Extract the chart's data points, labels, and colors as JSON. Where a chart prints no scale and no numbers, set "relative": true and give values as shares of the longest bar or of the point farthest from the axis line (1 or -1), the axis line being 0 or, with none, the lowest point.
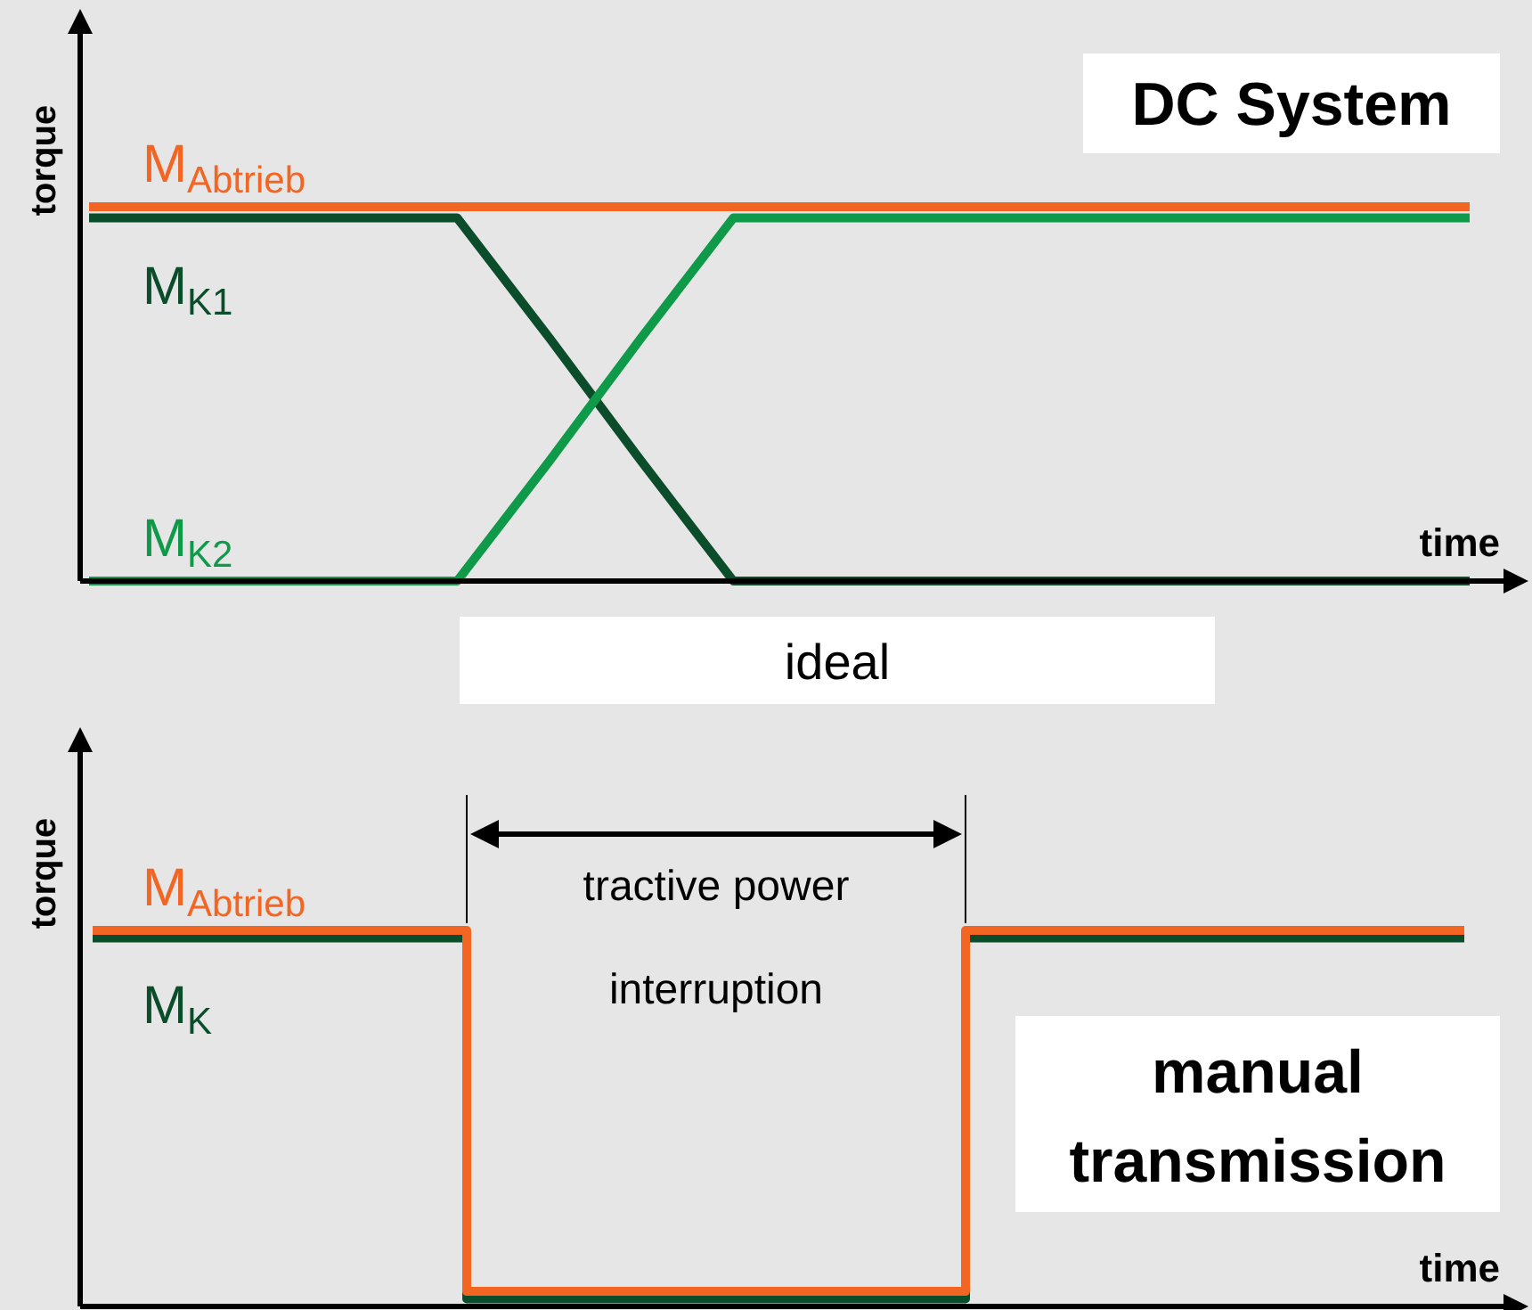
{
  "chart_data": [
    {
      "type": "line",
      "title": "DC System",
      "xlabel": "time",
      "ylabel": "torque",
      "relative": true,
      "annotations": [
        "ideal"
      ],
      "categories": [
        null,
        null,
        null,
        null,
        null,
        null,
        null,
        null,
        null,
        null,
        null,
        null,
        null,
        null,
        null,
        null
      ],
      "series": [
        {
          "name": "M$_{K1}$",
          "color": "#0b4d2a",
          "values": [
            0.97,
            0.97,
            0.97,
            0.97,
            0.97,
            0.65,
            0.32,
            0,
            0,
            0,
            0,
            0,
            0,
            0,
            0,
            0
          ]
        },
        {
          "name": "M$_{K2}$",
          "color": "#0e9a48",
          "values": [
            0,
            0,
            0,
            0,
            0,
            0.32,
            0.65,
            0.97,
            0.97,
            0.97,
            0.97,
            0.97,
            0.97,
            0.97,
            0.97,
            0.97
          ]
        },
        {
          "name": "M$_{Abtrieb}$",
          "color": "#f26522",
          "values": [
            1,
            1,
            1,
            1,
            1,
            1,
            1,
            1,
            1,
            1,
            1,
            1,
            1,
            1,
            1,
            1
          ]
        }
      ]
    },
    {
      "type": "step",
      "title": "manual transmission",
      "xlabel": "time",
      "ylabel": "torque",
      "relative": true,
      "annotations": [
        "tractive power interruption"
      ],
      "categories": [
        null,
        null,
        null,
        null,
        null,
        null,
        null,
        null,
        null,
        null,
        null,
        null
      ],
      "series": [
        {
          "name": "M$_{K}$",
          "color": "#0b4d2a",
          "values": [
            0.98,
            0.98,
            0.98,
            0.02,
            0.02,
            0.02,
            0.02,
            0.98,
            0.98,
            0.98,
            0.98,
            0.98
          ]
        },
        {
          "name": "M$_{Abtrieb}$",
          "color": "#f26522",
          "values": [
            1,
            1,
            1,
            0.04,
            0.04,
            0.04,
            0.04,
            1,
            1,
            1,
            1,
            1
          ]
        }
      ]
    }
  ]
}
